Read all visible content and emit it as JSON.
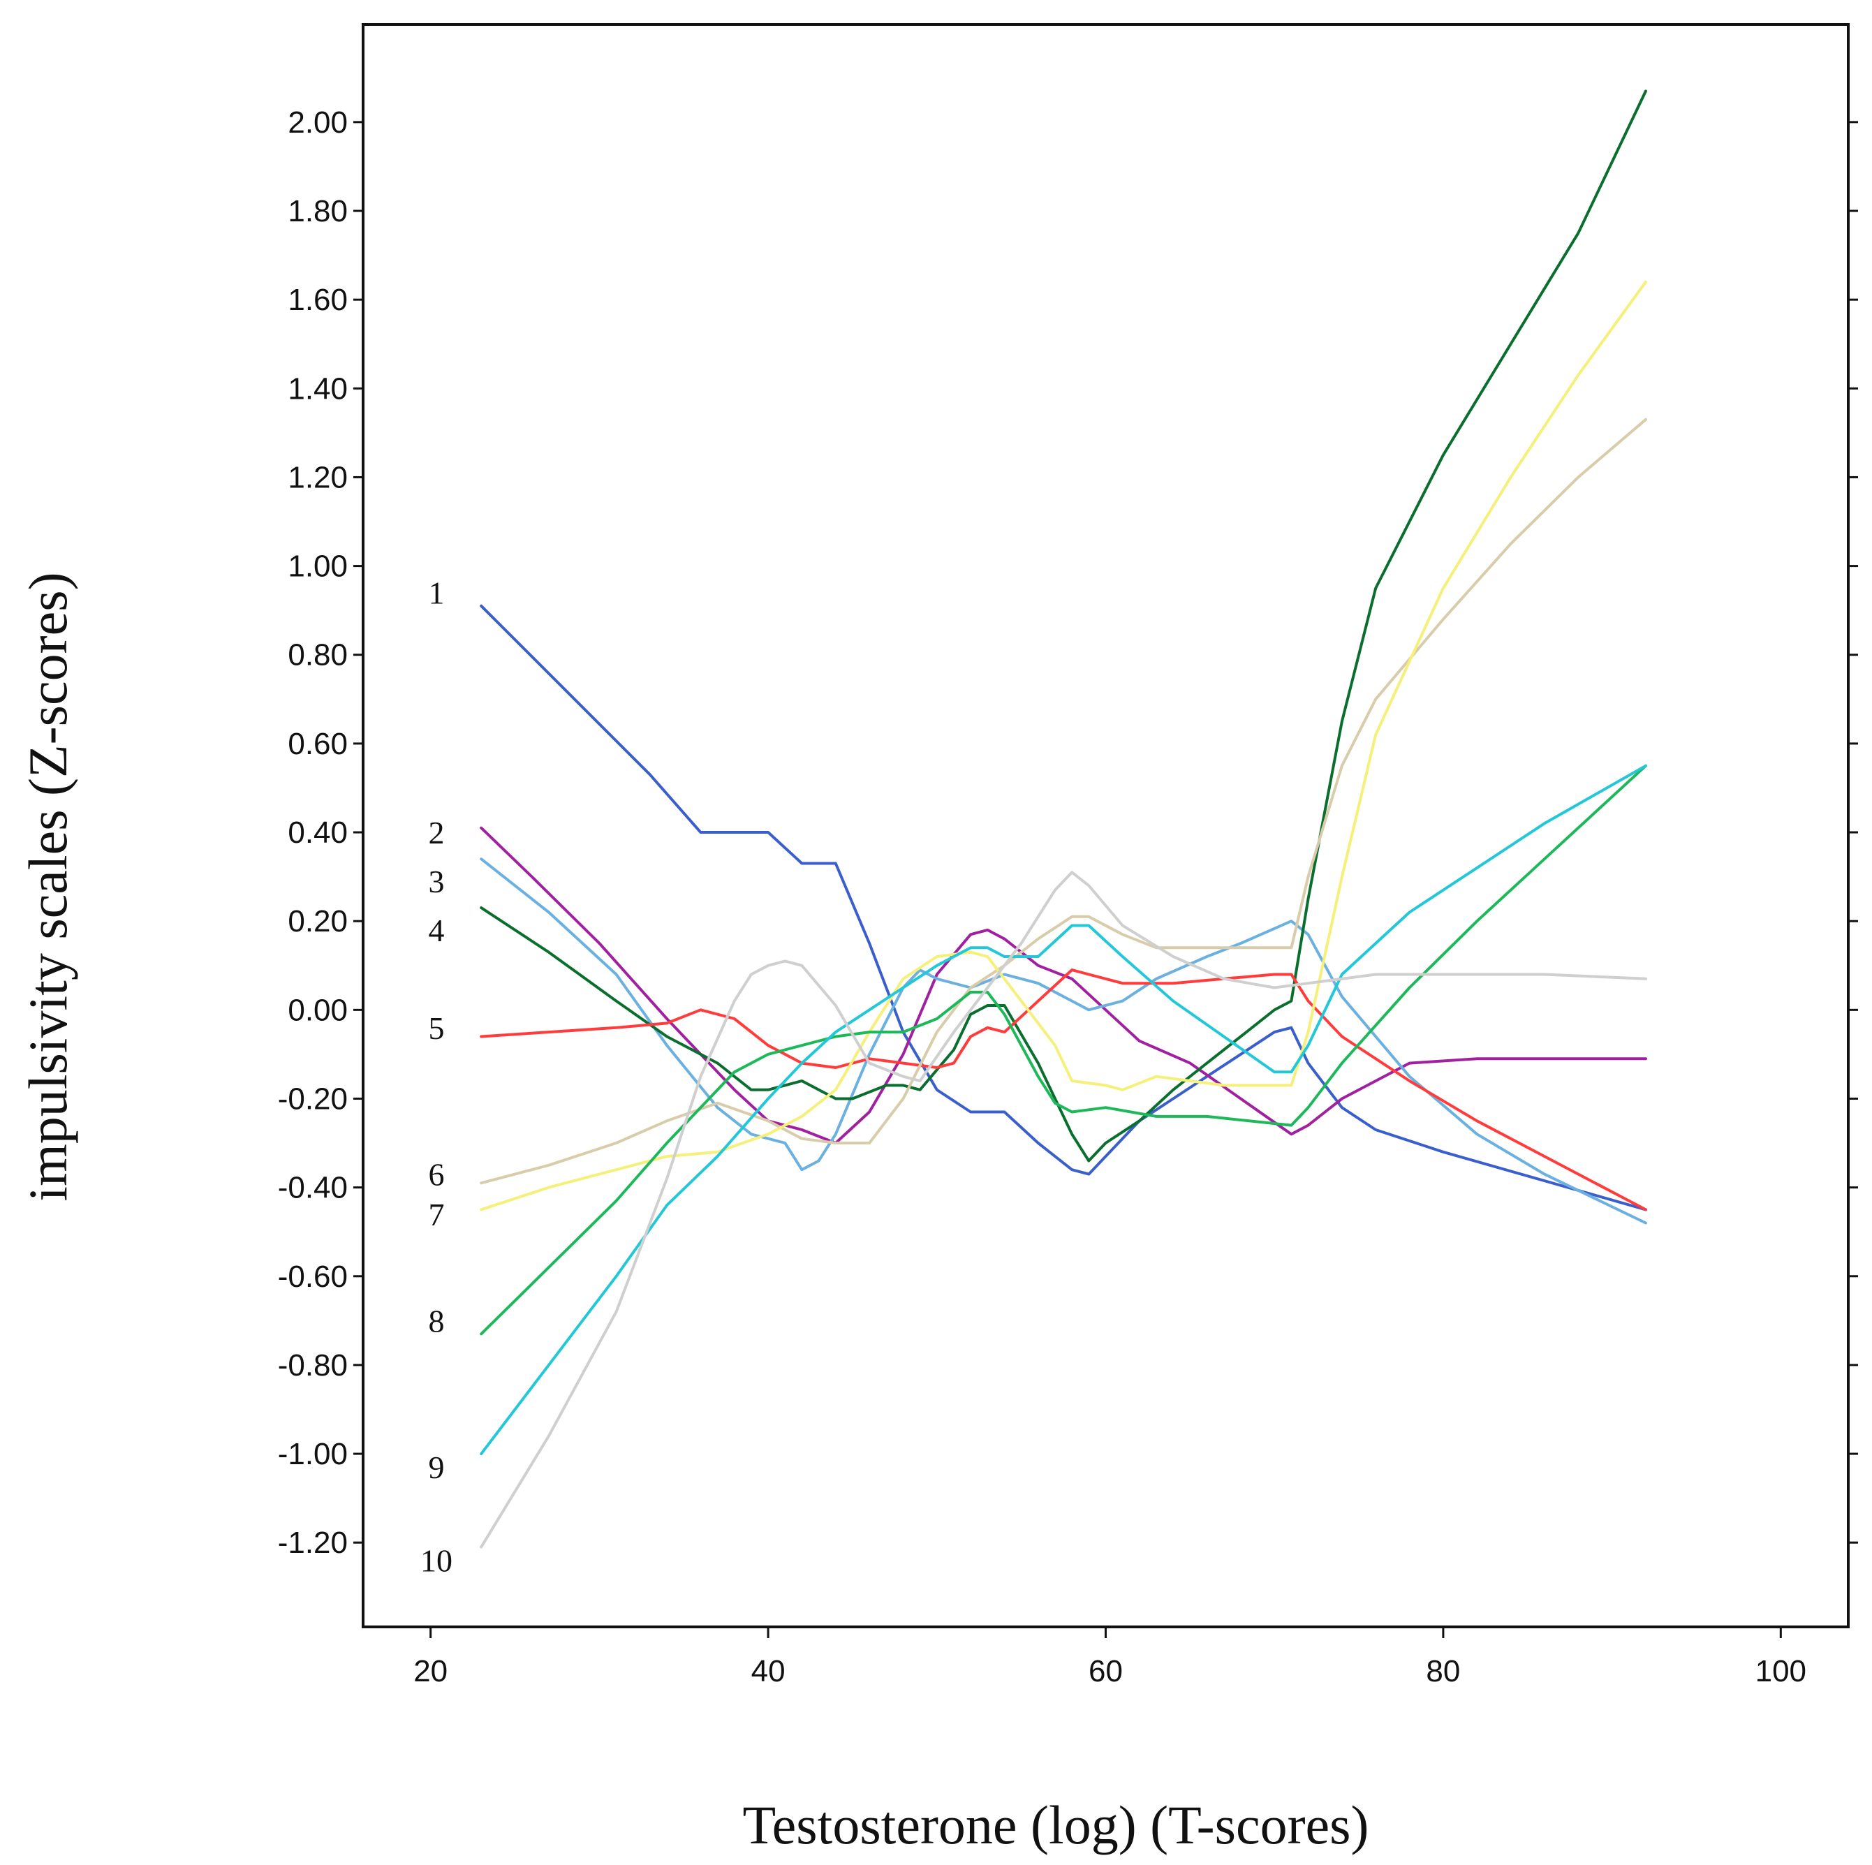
{
  "chart_data": {
    "type": "line",
    "xlabel": "Testosterone (log) (T-scores)",
    "ylabel": "impulsivity scales (Z-scores)",
    "xlim": [
      16,
      104
    ],
    "ylim": [
      -1.39,
      2.22
    ],
    "xticks": [
      20,
      40,
      60,
      80,
      100
    ],
    "xtick_labels": [
      "20",
      "40",
      "60",
      "80",
      "100"
    ],
    "yticks": [
      2.0,
      1.8,
      1.6,
      1.4,
      1.2,
      1.0,
      0.8,
      0.6,
      0.4,
      0.2,
      0.0,
      -0.2,
      -0.4,
      -0.6,
      -0.8,
      -1.0,
      -1.2
    ],
    "ytick_labels": [
      "2.00",
      "1.80",
      "1.60",
      "1.40",
      "1.20",
      "1.00",
      "0.80",
      "0.60",
      "0.40",
      "0.20",
      "0.00",
      "-0.20",
      "-0.40",
      "-0.60",
      "-0.80",
      "-1.00",
      "-1.20"
    ],
    "grid": false,
    "series": [
      {
        "name": "1",
        "label_y": 0.94,
        "color": "#3a5fcd",
        "points": [
          [
            23,
            0.91
          ],
          [
            28,
            0.72
          ],
          [
            33,
            0.53
          ],
          [
            36,
            0.4
          ],
          [
            38,
            0.4
          ],
          [
            40,
            0.4
          ],
          [
            42,
            0.33
          ],
          [
            44,
            0.33
          ],
          [
            46,
            0.15
          ],
          [
            48,
            -0.05
          ],
          [
            50,
            -0.18
          ],
          [
            52,
            -0.23
          ],
          [
            54,
            -0.23
          ],
          [
            56,
            -0.3
          ],
          [
            58,
            -0.36
          ],
          [
            59,
            -0.37
          ],
          [
            60,
            -0.33
          ],
          [
            62,
            -0.25
          ],
          [
            64,
            -0.2
          ],
          [
            66,
            -0.15
          ],
          [
            68,
            -0.1
          ],
          [
            70,
            -0.05
          ],
          [
            71,
            -0.04
          ],
          [
            72,
            -0.12
          ],
          [
            74,
            -0.22
          ],
          [
            76,
            -0.27
          ],
          [
            80,
            -0.32
          ],
          [
            92,
            -0.45
          ]
        ]
      },
      {
        "name": "2",
        "label_y": 0.4,
        "color": "#a020a0",
        "points": [
          [
            23,
            0.41
          ],
          [
            26,
            0.3
          ],
          [
            30,
            0.15
          ],
          [
            34,
            -0.02
          ],
          [
            38,
            -0.18
          ],
          [
            40,
            -0.25
          ],
          [
            42,
            -0.27
          ],
          [
            44,
            -0.3
          ],
          [
            46,
            -0.23
          ],
          [
            48,
            -0.1
          ],
          [
            50,
            0.08
          ],
          [
            52,
            0.17
          ],
          [
            53,
            0.18
          ],
          [
            54,
            0.16
          ],
          [
            56,
            0.1
          ],
          [
            58,
            0.07
          ],
          [
            60,
            0.0
          ],
          [
            62,
            -0.07
          ],
          [
            65,
            -0.12
          ],
          [
            68,
            -0.2
          ],
          [
            71,
            -0.28
          ],
          [
            72,
            -0.26
          ],
          [
            74,
            -0.2
          ],
          [
            78,
            -0.12
          ],
          [
            82,
            -0.11
          ],
          [
            86,
            -0.11
          ],
          [
            92,
            -0.11
          ]
        ]
      },
      {
        "name": "3",
        "label_y": 0.29,
        "color": "#6ab0e0",
        "points": [
          [
            23,
            0.34
          ],
          [
            27,
            0.22
          ],
          [
            31,
            0.08
          ],
          [
            34,
            -0.08
          ],
          [
            37,
            -0.22
          ],
          [
            39,
            -0.28
          ],
          [
            41,
            -0.3
          ],
          [
            42,
            -0.36
          ],
          [
            43,
            -0.34
          ],
          [
            44,
            -0.28
          ],
          [
            46,
            -0.1
          ],
          [
            48,
            0.05
          ],
          [
            49,
            0.09
          ],
          [
            50,
            0.07
          ],
          [
            52,
            0.05
          ],
          [
            54,
            0.08
          ],
          [
            56,
            0.06
          ],
          [
            58,
            0.02
          ],
          [
            59,
            0.0
          ],
          [
            61,
            0.02
          ],
          [
            63,
            0.07
          ],
          [
            66,
            0.12
          ],
          [
            68,
            0.15
          ],
          [
            71,
            0.2
          ],
          [
            72,
            0.17
          ],
          [
            74,
            0.03
          ],
          [
            78,
            -0.15
          ],
          [
            82,
            -0.28
          ],
          [
            86,
            -0.37
          ],
          [
            92,
            -0.48
          ]
        ]
      },
      {
        "name": "4",
        "label_y": 0.18,
        "color": "#0a6e2e",
        "points": [
          [
            23,
            0.23
          ],
          [
            27,
            0.13
          ],
          [
            31,
            0.02
          ],
          [
            34,
            -0.06
          ],
          [
            37,
            -0.12
          ],
          [
            39,
            -0.18
          ],
          [
            40,
            -0.18
          ],
          [
            42,
            -0.16
          ],
          [
            44,
            -0.2
          ],
          [
            45,
            -0.2
          ],
          [
            47,
            -0.17
          ],
          [
            48,
            -0.17
          ],
          [
            49,
            -0.18
          ],
          [
            51,
            -0.09
          ],
          [
            52,
            -0.01
          ],
          [
            53,
            0.01
          ],
          [
            54,
            0.01
          ],
          [
            56,
            -0.12
          ],
          [
            58,
            -0.28
          ],
          [
            59,
            -0.34
          ],
          [
            60,
            -0.3
          ],
          [
            62,
            -0.25
          ],
          [
            64,
            -0.18
          ],
          [
            66,
            -0.12
          ],
          [
            68,
            -0.06
          ],
          [
            70,
            0.0
          ],
          [
            71,
            0.02
          ],
          [
            72,
            0.25
          ],
          [
            74,
            0.65
          ],
          [
            76,
            0.95
          ],
          [
            80,
            1.25
          ],
          [
            84,
            1.5
          ],
          [
            88,
            1.75
          ],
          [
            92,
            2.07
          ]
        ]
      },
      {
        "name": "5",
        "label_y": -0.04,
        "color": "#ff3b3b",
        "points": [
          [
            23,
            -0.06
          ],
          [
            27,
            -0.05
          ],
          [
            31,
            -0.04
          ],
          [
            34,
            -0.03
          ],
          [
            36,
            0.0
          ],
          [
            38,
            -0.02
          ],
          [
            40,
            -0.08
          ],
          [
            42,
            -0.12
          ],
          [
            44,
            -0.13
          ],
          [
            46,
            -0.11
          ],
          [
            48,
            -0.12
          ],
          [
            50,
            -0.13
          ],
          [
            51,
            -0.12
          ],
          [
            52,
            -0.06
          ],
          [
            53,
            -0.04
          ],
          [
            54,
            -0.05
          ],
          [
            56,
            0.02
          ],
          [
            58,
            0.09
          ],
          [
            59,
            0.08
          ],
          [
            61,
            0.06
          ],
          [
            64,
            0.06
          ],
          [
            67,
            0.07
          ],
          [
            70,
            0.08
          ],
          [
            71,
            0.08
          ],
          [
            72,
            0.02
          ],
          [
            74,
            -0.06
          ],
          [
            78,
            -0.16
          ],
          [
            82,
            -0.25
          ],
          [
            86,
            -0.33
          ],
          [
            92,
            -0.45
          ]
        ]
      },
      {
        "name": "6",
        "label_y": -0.37,
        "color": "#d8ccaa",
        "points": [
          [
            23,
            -0.39
          ],
          [
            27,
            -0.35
          ],
          [
            31,
            -0.3
          ],
          [
            34,
            -0.25
          ],
          [
            37,
            -0.21
          ],
          [
            40,
            -0.25
          ],
          [
            42,
            -0.29
          ],
          [
            44,
            -0.3
          ],
          [
            46,
            -0.3
          ],
          [
            48,
            -0.2
          ],
          [
            50,
            -0.05
          ],
          [
            52,
            0.05
          ],
          [
            54,
            0.1
          ],
          [
            56,
            0.16
          ],
          [
            58,
            0.21
          ],
          [
            59,
            0.21
          ],
          [
            61,
            0.17
          ],
          [
            63,
            0.14
          ],
          [
            66,
            0.14
          ],
          [
            68,
            0.14
          ],
          [
            71,
            0.14
          ],
          [
            72,
            0.3
          ],
          [
            74,
            0.55
          ],
          [
            76,
            0.7
          ],
          [
            80,
            0.88
          ],
          [
            84,
            1.05
          ],
          [
            88,
            1.2
          ],
          [
            92,
            1.33
          ]
        ]
      },
      {
        "name": "7",
        "label_y": -0.46,
        "color": "#f5f07a",
        "points": [
          [
            23,
            -0.45
          ],
          [
            27,
            -0.4
          ],
          [
            31,
            -0.36
          ],
          [
            34,
            -0.33
          ],
          [
            37,
            -0.32
          ],
          [
            40,
            -0.28
          ],
          [
            42,
            -0.24
          ],
          [
            44,
            -0.18
          ],
          [
            46,
            -0.05
          ],
          [
            48,
            0.07
          ],
          [
            50,
            0.12
          ],
          [
            52,
            0.13
          ],
          [
            53,
            0.12
          ],
          [
            55,
            0.02
          ],
          [
            57,
            -0.08
          ],
          [
            58,
            -0.16
          ],
          [
            60,
            -0.17
          ],
          [
            61,
            -0.18
          ],
          [
            63,
            -0.15
          ],
          [
            65,
            -0.16
          ],
          [
            67,
            -0.17
          ],
          [
            71,
            -0.17
          ],
          [
            72,
            -0.05
          ],
          [
            74,
            0.3
          ],
          [
            76,
            0.62
          ],
          [
            80,
            0.95
          ],
          [
            84,
            1.2
          ],
          [
            88,
            1.43
          ],
          [
            92,
            1.64
          ]
        ]
      },
      {
        "name": "8",
        "label_y": -0.7,
        "color": "#1db85a",
        "points": [
          [
            23,
            -0.73
          ],
          [
            27,
            -0.58
          ],
          [
            31,
            -0.43
          ],
          [
            34,
            -0.3
          ],
          [
            36,
            -0.22
          ],
          [
            38,
            -0.14
          ],
          [
            40,
            -0.1
          ],
          [
            42,
            -0.08
          ],
          [
            44,
            -0.06
          ],
          [
            46,
            -0.05
          ],
          [
            48,
            -0.05
          ],
          [
            50,
            -0.02
          ],
          [
            52,
            0.04
          ],
          [
            53,
            0.04
          ],
          [
            54,
            -0.01
          ],
          [
            56,
            -0.15
          ],
          [
            57,
            -0.21
          ],
          [
            58,
            -0.23
          ],
          [
            60,
            -0.22
          ],
          [
            63,
            -0.24
          ],
          [
            66,
            -0.24
          ],
          [
            71,
            -0.26
          ],
          [
            72,
            -0.22
          ],
          [
            74,
            -0.12
          ],
          [
            78,
            0.05
          ],
          [
            82,
            0.2
          ],
          [
            86,
            0.34
          ],
          [
            92,
            0.55
          ]
        ]
      },
      {
        "name": "9",
        "label_y": -1.03,
        "color": "#22c8d8",
        "points": [
          [
            23,
            -1.0
          ],
          [
            27,
            -0.8
          ],
          [
            31,
            -0.6
          ],
          [
            34,
            -0.44
          ],
          [
            37,
            -0.33
          ],
          [
            40,
            -0.2
          ],
          [
            42,
            -0.12
          ],
          [
            44,
            -0.05
          ],
          [
            46,
            0.0
          ],
          [
            48,
            0.05
          ],
          [
            50,
            0.1
          ],
          [
            52,
            0.14
          ],
          [
            53,
            0.14
          ],
          [
            54,
            0.12
          ],
          [
            56,
            0.12
          ],
          [
            58,
            0.19
          ],
          [
            59,
            0.19
          ],
          [
            61,
            0.12
          ],
          [
            64,
            0.02
          ],
          [
            67,
            -0.06
          ],
          [
            70,
            -0.14
          ],
          [
            71,
            -0.14
          ],
          [
            72,
            -0.08
          ],
          [
            74,
            0.08
          ],
          [
            78,
            0.22
          ],
          [
            82,
            0.32
          ],
          [
            86,
            0.42
          ],
          [
            92,
            0.55
          ]
        ]
      },
      {
        "name": "10",
        "label_y": -1.24,
        "color": "#cfcfcf",
        "points": [
          [
            23,
            -1.21
          ],
          [
            27,
            -0.96
          ],
          [
            31,
            -0.68
          ],
          [
            34,
            -0.38
          ],
          [
            36,
            -0.15
          ],
          [
            38,
            0.02
          ],
          [
            39,
            0.08
          ],
          [
            40,
            0.1
          ],
          [
            41,
            0.11
          ],
          [
            42,
            0.1
          ],
          [
            44,
            0.01
          ],
          [
            46,
            -0.12
          ],
          [
            48,
            -0.15
          ],
          [
            49,
            -0.16
          ],
          [
            51,
            -0.05
          ],
          [
            53,
            0.05
          ],
          [
            55,
            0.15
          ],
          [
            57,
            0.27
          ],
          [
            58,
            0.31
          ],
          [
            59,
            0.28
          ],
          [
            61,
            0.19
          ],
          [
            64,
            0.12
          ],
          [
            67,
            0.07
          ],
          [
            70,
            0.05
          ],
          [
            72,
            0.06
          ],
          [
            76,
            0.08
          ],
          [
            80,
            0.08
          ],
          [
            86,
            0.08
          ],
          [
            92,
            0.07
          ]
        ]
      }
    ]
  }
}
